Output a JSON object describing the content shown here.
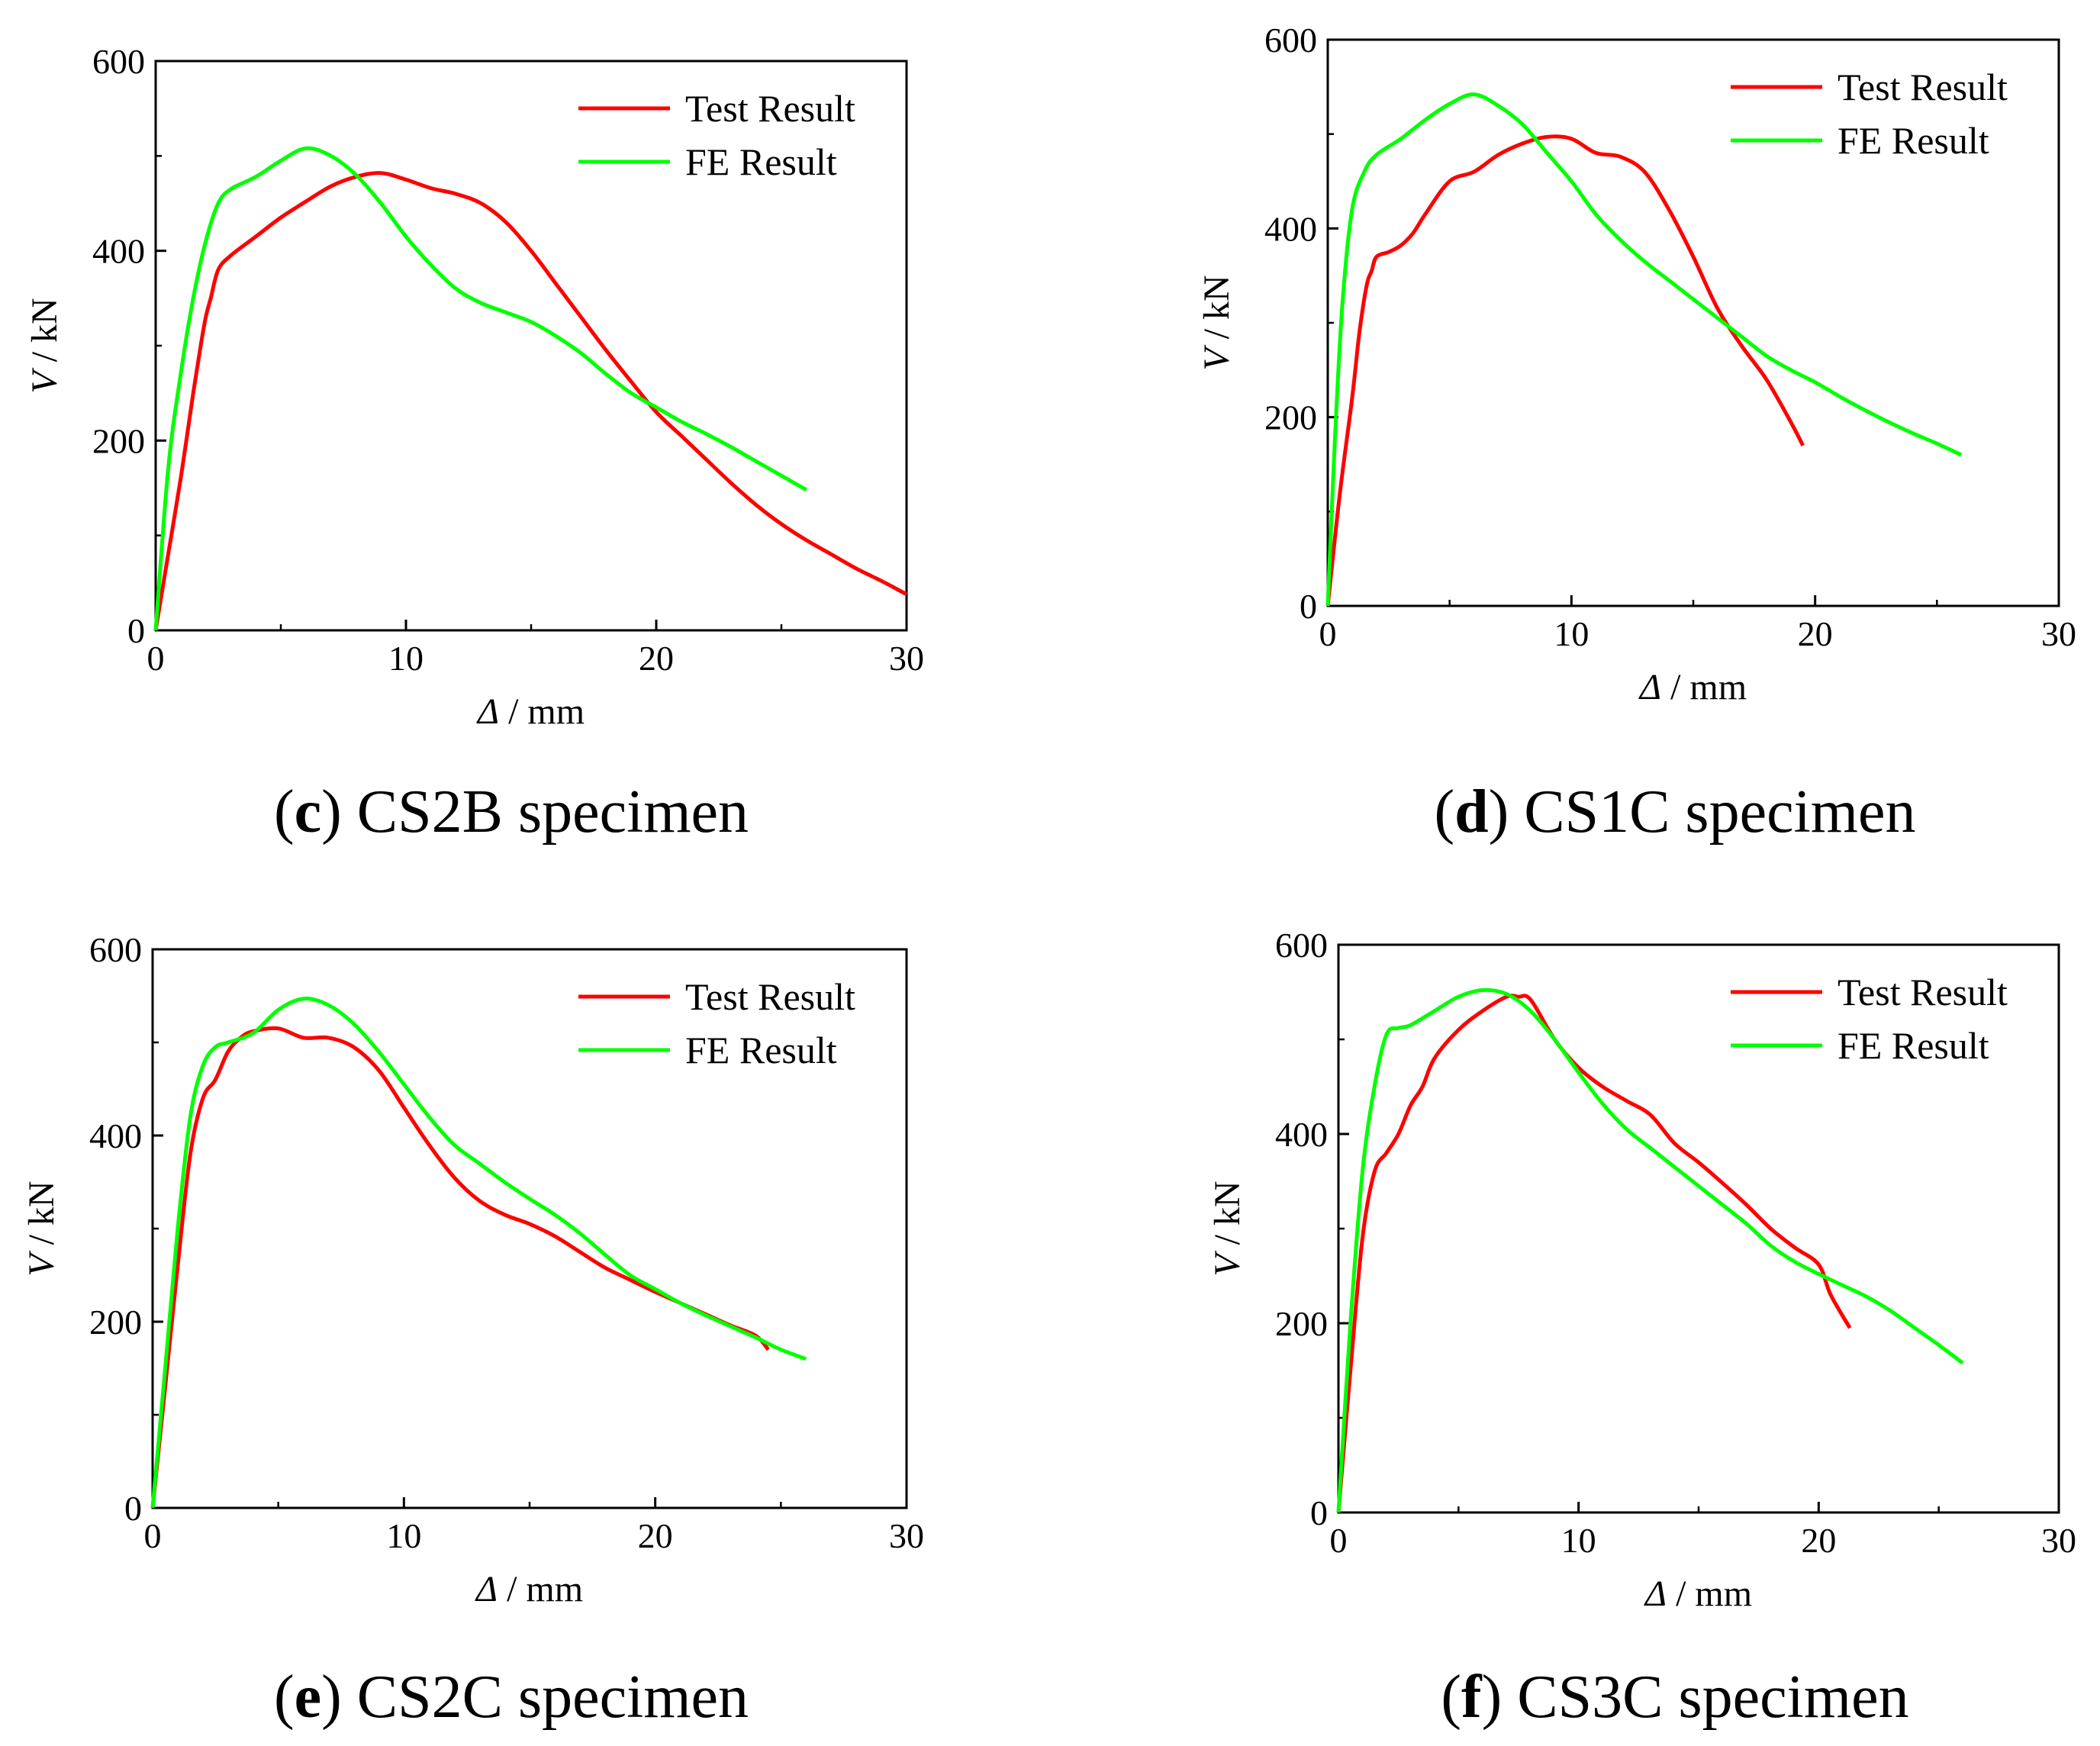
{
  "chart_data": [
    {
      "type": "line",
      "panel": "c",
      "caption": {
        "letter": "c",
        "text": "CS2B specimen"
      },
      "xlabel": {
        "symbol": "Δ",
        "unit": "/ mm"
      },
      "ylabel": {
        "symbol": "V",
        "unit": "/ kN"
      },
      "xlim": [
        0,
        30
      ],
      "ylim": [
        0,
        600
      ],
      "xticks": [
        0,
        10,
        20,
        30
      ],
      "yticks": [
        0,
        200,
        400,
        600
      ],
      "minor_xticks": [
        5,
        15,
        25
      ],
      "minor_yticks": [
        100,
        300,
        500
      ],
      "legend_position": "top-right",
      "series": [
        {
          "name": "Test Result",
          "color": "#ff0000",
          "points": [
            [
              0,
              0
            ],
            [
              0.5,
              80
            ],
            [
              1,
              160
            ],
            [
              1.5,
              250
            ],
            [
              1.8,
              300
            ],
            [
              2,
              330
            ],
            [
              2.2,
              350
            ],
            [
              2.5,
              380
            ],
            [
              3,
              395
            ],
            [
              4,
              415
            ],
            [
              5,
              435
            ],
            [
              6,
              452
            ],
            [
              7,
              468
            ],
            [
              8,
              478
            ],
            [
              9,
              482
            ],
            [
              10,
              475
            ],
            [
              11,
              466
            ],
            [
              12,
              460
            ],
            [
              13,
              450
            ],
            [
              14,
              430
            ],
            [
              15,
              400
            ],
            [
              16,
              365
            ],
            [
              17,
              330
            ],
            [
              18,
              295
            ],
            [
              19,
              262
            ],
            [
              20,
              230
            ],
            [
              21,
              205
            ],
            [
              22,
              180
            ],
            [
              23,
              155
            ],
            [
              24,
              132
            ],
            [
              25,
              112
            ],
            [
              26,
              95
            ],
            [
              27,
              80
            ],
            [
              28,
              65
            ],
            [
              29,
              52
            ],
            [
              30,
              38
            ]
          ]
        },
        {
          "name": "FE Result",
          "color": "#00ff00",
          "points": [
            [
              0,
              0
            ],
            [
              0.5,
              170
            ],
            [
              1,
              270
            ],
            [
              1.5,
              350
            ],
            [
              2,
              410
            ],
            [
              2.5,
              450
            ],
            [
              3,
              465
            ],
            [
              4,
              478
            ],
            [
              5,
              495
            ],
            [
              6,
              508
            ],
            [
              7,
              500
            ],
            [
              8,
              480
            ],
            [
              9,
              450
            ],
            [
              10,
              415
            ],
            [
              11,
              385
            ],
            [
              12,
              360
            ],
            [
              13,
              345
            ],
            [
              14,
              335
            ],
            [
              15,
              325
            ],
            [
              16,
              310
            ],
            [
              17,
              292
            ],
            [
              18,
              270
            ],
            [
              19,
              250
            ],
            [
              20,
              235
            ],
            [
              21,
              220
            ],
            [
              22,
              207
            ],
            [
              23,
              193
            ],
            [
              24,
              178
            ],
            [
              25,
              163
            ],
            [
              26,
              148
            ]
          ]
        }
      ]
    },
    {
      "type": "line",
      "panel": "d",
      "caption": {
        "letter": "d",
        "text": "CS1C specimen"
      },
      "xlabel": {
        "symbol": "Δ",
        "unit": "/ mm"
      },
      "ylabel": {
        "symbol": "V",
        "unit": "/ kN"
      },
      "xlim": [
        0,
        30
      ],
      "ylim": [
        0,
        600
      ],
      "xticks": [
        0,
        10,
        20,
        30
      ],
      "yticks": [
        0,
        200,
        400,
        600
      ],
      "minor_xticks": [
        5,
        15,
        25
      ],
      "minor_yticks": [
        100,
        300,
        500
      ],
      "legend_position": "top-right",
      "series": [
        {
          "name": "Test Result",
          "color": "#ff0000",
          "points": [
            [
              0,
              0
            ],
            [
              0.5,
              120
            ],
            [
              1,
              220
            ],
            [
              1.3,
              290
            ],
            [
              1.6,
              340
            ],
            [
              1.8,
              355
            ],
            [
              2,
              370
            ],
            [
              2.5,
              375
            ],
            [
              3,
              382
            ],
            [
              3.5,
              395
            ],
            [
              4,
              415
            ],
            [
              5,
              450
            ],
            [
              6,
              460
            ],
            [
              7,
              478
            ],
            [
              8,
              490
            ],
            [
              9,
              497
            ],
            [
              10,
              495
            ],
            [
              11,
              480
            ],
            [
              12,
              476
            ],
            [
              13,
              460
            ],
            [
              14,
              420
            ],
            [
              15,
              370
            ],
            [
              16,
              315
            ],
            [
              17,
              275
            ],
            [
              18,
              240
            ],
            [
              19,
              195
            ],
            [
              19.5,
              170
            ]
          ]
        },
        {
          "name": "FE Result",
          "color": "#00ff00",
          "points": [
            [
              0,
              0
            ],
            [
              0.3,
              180
            ],
            [
              0.6,
              320
            ],
            [
              1,
              420
            ],
            [
              1.5,
              460
            ],
            [
              2,
              478
            ],
            [
              3,
              495
            ],
            [
              4,
              515
            ],
            [
              5,
              532
            ],
            [
              6,
              542
            ],
            [
              7,
              530
            ],
            [
              8,
              510
            ],
            [
              9,
              480
            ],
            [
              10,
              450
            ],
            [
              11,
              415
            ],
            [
              12,
              388
            ],
            [
              13,
              365
            ],
            [
              14,
              345
            ],
            [
              15,
              325
            ],
            [
              16,
              305
            ],
            [
              17,
              285
            ],
            [
              18,
              265
            ],
            [
              19,
              250
            ],
            [
              20,
              237
            ],
            [
              21,
              222
            ],
            [
              22,
              208
            ],
            [
              23,
              195
            ],
            [
              24,
              183
            ],
            [
              25,
              172
            ],
            [
              26,
              160
            ]
          ]
        }
      ]
    },
    {
      "type": "line",
      "panel": "e",
      "caption": {
        "letter": "e",
        "text": "CS2C specimen"
      },
      "xlabel": {
        "symbol": "Δ",
        "unit": "/ mm"
      },
      "ylabel": {
        "symbol": "V",
        "unit": "/ kN"
      },
      "xlim": [
        0,
        30
      ],
      "ylim": [
        0,
        600
      ],
      "xticks": [
        0,
        10,
        20,
        30
      ],
      "yticks": [
        0,
        200,
        400,
        600
      ],
      "minor_xticks": [
        5,
        15,
        25
      ],
      "minor_yticks": [
        100,
        300,
        500
      ],
      "legend_position": "top-right",
      "series": [
        {
          "name": "Test Result",
          "color": "#ff0000",
          "points": [
            [
              0,
              0
            ],
            [
              0.5,
              130
            ],
            [
              1,
              260
            ],
            [
              1.5,
              380
            ],
            [
              2,
              440
            ],
            [
              2.5,
              460
            ],
            [
              3,
              490
            ],
            [
              3.5,
              505
            ],
            [
              4,
              512
            ],
            [
              5,
              515
            ],
            [
              6,
              505
            ],
            [
              7,
              505
            ],
            [
              8,
              495
            ],
            [
              9,
              470
            ],
            [
              10,
              430
            ],
            [
              11,
              390
            ],
            [
              12,
              355
            ],
            [
              13,
              330
            ],
            [
              14,
              315
            ],
            [
              15,
              305
            ],
            [
              16,
              292
            ],
            [
              17,
              275
            ],
            [
              18,
              258
            ],
            [
              19,
              245
            ],
            [
              20,
              232
            ],
            [
              21,
              220
            ],
            [
              22,
              208
            ],
            [
              23,
              196
            ],
            [
              24,
              185
            ],
            [
              24.5,
              170
            ]
          ]
        },
        {
          "name": "FE Result",
          "color": "#00ff00",
          "points": [
            [
              0,
              0
            ],
            [
              0.5,
              150
            ],
            [
              1,
              300
            ],
            [
              1.5,
              420
            ],
            [
              2,
              475
            ],
            [
              2.5,
              495
            ],
            [
              3,
              500
            ],
            [
              4,
              510
            ],
            [
              5,
              535
            ],
            [
              6,
              547
            ],
            [
              7,
              540
            ],
            [
              8,
              520
            ],
            [
              9,
              490
            ],
            [
              10,
              455
            ],
            [
              11,
              420
            ],
            [
              12,
              390
            ],
            [
              13,
              370
            ],
            [
              14,
              350
            ],
            [
              15,
              332
            ],
            [
              16,
              315
            ],
            [
              17,
              295
            ],
            [
              18,
              272
            ],
            [
              19,
              250
            ],
            [
              20,
              235
            ],
            [
              21,
              220
            ],
            [
              22,
              207
            ],
            [
              23,
              195
            ],
            [
              24,
              183
            ],
            [
              25,
              170
            ],
            [
              26,
              160
            ]
          ]
        }
      ]
    },
    {
      "type": "line",
      "panel": "f",
      "caption": {
        "letter": "f",
        "text": "CS3C specimen"
      },
      "xlabel": {
        "symbol": "Δ",
        "unit": "/ mm"
      },
      "ylabel": {
        "symbol": "V",
        "unit": "/ kN"
      },
      "xlim": [
        0,
        30
      ],
      "ylim": [
        0,
        600
      ],
      "xticks": [
        0,
        10,
        20,
        30
      ],
      "yticks": [
        0,
        200,
        400,
        600
      ],
      "minor_xticks": [
        5,
        15,
        25
      ],
      "minor_yticks": [
        100,
        300,
        500
      ],
      "legend_position": "top-right",
      "series": [
        {
          "name": "Test Result",
          "color": "#ff0000",
          "points": [
            [
              0,
              0
            ],
            [
              0.5,
              150
            ],
            [
              1,
              290
            ],
            [
              1.5,
              360
            ],
            [
              2,
              380
            ],
            [
              2.5,
              400
            ],
            [
              3,
              430
            ],
            [
              3.5,
              450
            ],
            [
              4,
              480
            ],
            [
              5,
              510
            ],
            [
              6,
              530
            ],
            [
              7,
              545
            ],
            [
              7.5,
              545
            ],
            [
              8,
              542
            ],
            [
              9,
              500
            ],
            [
              10,
              470
            ],
            [
              11,
              450
            ],
            [
              12,
              435
            ],
            [
              13,
              420
            ],
            [
              14,
              390
            ],
            [
              15,
              370
            ],
            [
              16,
              348
            ],
            [
              17,
              325
            ],
            [
              18,
              300
            ],
            [
              19,
              280
            ],
            [
              20,
              262
            ],
            [
              20.5,
              230
            ],
            [
              21.3,
              195
            ]
          ]
        },
        {
          "name": "FE Result",
          "color": "#00ff00",
          "points": [
            [
              0,
              0
            ],
            [
              0.5,
              200
            ],
            [
              1,
              360
            ],
            [
              1.5,
              450
            ],
            [
              2,
              505
            ],
            [
              2.5,
              512
            ],
            [
              3,
              515
            ],
            [
              4,
              530
            ],
            [
              5,
              545
            ],
            [
              6,
              552
            ],
            [
              7,
              548
            ],
            [
              8,
              530
            ],
            [
              9,
              500
            ],
            [
              10,
              465
            ],
            [
              11,
              432
            ],
            [
              12,
              405
            ],
            [
              13,
              385
            ],
            [
              14,
              365
            ],
            [
              15,
              345
            ],
            [
              16,
              325
            ],
            [
              17,
              305
            ],
            [
              18,
              282
            ],
            [
              19,
              265
            ],
            [
              20,
              252
            ],
            [
              21,
              240
            ],
            [
              22,
              228
            ],
            [
              23,
              213
            ],
            [
              24,
              195
            ],
            [
              25,
              177
            ],
            [
              26,
              158
            ]
          ]
        }
      ]
    }
  ]
}
